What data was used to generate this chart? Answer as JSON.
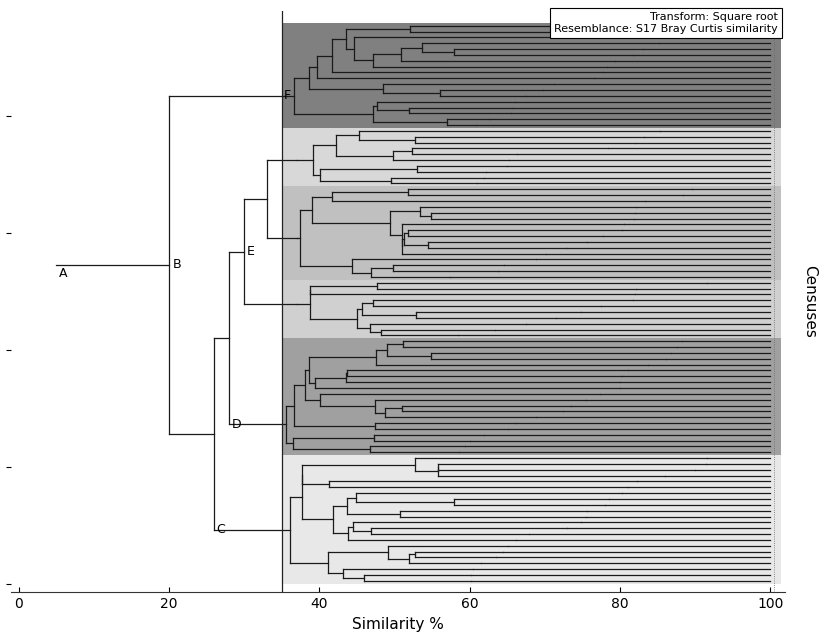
{
  "xlabel": "Similarity %",
  "ylabel": "Censuses",
  "annotation_text": "Transform: Square root\nResemblance: S17 Bray Curtis similarity",
  "xticks": [
    0,
    20,
    40,
    60,
    80,
    100
  ],
  "bg_F": "#808080",
  "bg_E1": "#d8d8d8",
  "bg_E2": "#c0c0c0",
  "bg_E3": "#d0d0d0",
  "bg_D": "#a0a0a0",
  "bg_C": "#e8e8e8",
  "figure_bg": "#ffffff",
  "dendro_color": "#1a1a1a",
  "line_width": 0.9,
  "N_F": 18,
  "N_E1": 10,
  "N_E2": 16,
  "N_E3": 10,
  "N_D": 20,
  "N_C": 22
}
